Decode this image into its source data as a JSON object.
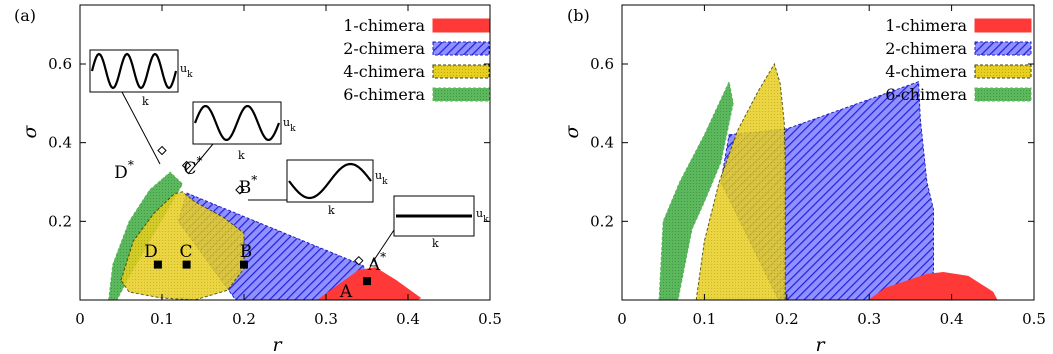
{
  "chart_data": [
    {
      "type": "area",
      "panel_label": "(a)",
      "xlabel": "r",
      "ylabel": "σ",
      "xlim": [
        0,
        0.5
      ],
      "ylim": [
        0,
        0.75
      ],
      "xticks": [
        "0",
        "0.1",
        "0.2",
        "0.3",
        "0.4",
        "0.5"
      ],
      "yticks": [
        "0.2",
        "0.4",
        "0.6"
      ],
      "grid": false,
      "legend_position": "top-right",
      "series": [
        {
          "name": "2-chimera",
          "color": "#4040ff",
          "pattern": "hatch",
          "x": [
            0.13,
            0.345,
            0.35,
            0.32,
            0.19,
            0.12
          ],
          "y": [
            0.272,
            0.088,
            0.07,
            0.0,
            0.0,
            0.2
          ]
        },
        {
          "name": "1-chimera",
          "color": "#ff4040",
          "pattern": "solid",
          "x": [
            0.29,
            0.34,
            0.36,
            0.385,
            0.415,
            0.41
          ],
          "y": [
            0.0,
            0.075,
            0.082,
            0.05,
            0.005,
            0.0
          ]
        },
        {
          "name": "6-chimera",
          "color": "#5cb85c",
          "pattern": "dots",
          "x": [
            0.035,
            0.04,
            0.06,
            0.085,
            0.11,
            0.125,
            0.06,
            0.045
          ],
          "y": [
            0.0,
            0.09,
            0.2,
            0.28,
            0.325,
            0.295,
            0.06,
            0.0
          ]
        },
        {
          "name": "4-chimera",
          "color": "#e8d020",
          "pattern": "dots",
          "x": [
            0.05,
            0.065,
            0.09,
            0.115,
            0.125,
            0.14,
            0.175,
            0.2,
            0.2,
            0.18,
            0.14,
            0.1,
            0.06
          ],
          "y": [
            0.05,
            0.15,
            0.22,
            0.27,
            0.275,
            0.25,
            0.21,
            0.17,
            0.08,
            0.025,
            0.0,
            0.005,
            0.02
          ]
        }
      ],
      "legend": [
        "1-chimera",
        "2-chimera",
        "4-chimera",
        "6-chimera"
      ],
      "points": [
        {
          "label": "D",
          "x": 0.095,
          "y": 0.09,
          "marker": "square"
        },
        {
          "label": "C",
          "x": 0.13,
          "y": 0.09,
          "marker": "square"
        },
        {
          "label": "B",
          "x": 0.2,
          "y": 0.09,
          "marker": "square"
        },
        {
          "label": "A",
          "x": 0.35,
          "y": 0.048,
          "marker": "square"
        },
        {
          "label": "D*",
          "x": 0.1,
          "y": 0.38,
          "marker": "diamond"
        },
        {
          "label": "C*",
          "x": 0.13,
          "y": 0.342,
          "marker": "diamond"
        },
        {
          "label": "B*",
          "x": 0.195,
          "y": 0.28,
          "marker": "diamond"
        },
        {
          "label": "A*",
          "x": 0.34,
          "y": 0.1,
          "marker": "diamond"
        }
      ],
      "insets": [
        {
          "target": "D*",
          "ylabel": "u_k",
          "xlabel": "k",
          "profile": "3 periods"
        },
        {
          "target": "C*",
          "ylabel": "u_k",
          "xlabel": "k",
          "profile": "2 periods"
        },
        {
          "target": "B*",
          "ylabel": "u_k",
          "xlabel": "k",
          "profile": "1 period"
        },
        {
          "target": "A*",
          "ylabel": "u_k",
          "xlabel": "k",
          "profile": "flat"
        }
      ]
    },
    {
      "type": "area",
      "panel_label": "(b)",
      "xlabel": "r",
      "ylabel": "σ",
      "xlim": [
        0,
        0.5
      ],
      "ylim": [
        0,
        0.75
      ],
      "xticks": [
        "0",
        "0.1",
        "0.2",
        "0.3",
        "0.4",
        "0.5"
      ],
      "yticks": [
        "0.2",
        "0.4",
        "0.6"
      ],
      "grid": false,
      "legend_position": "top-right",
      "series": [
        {
          "name": "2-chimera",
          "color": "#4040ff",
          "pattern": "hatch",
          "x": [
            0.13,
            0.2,
            0.36,
            0.362,
            0.37,
            0.378,
            0.378,
            0.3,
            0.19,
            0.12
          ],
          "y": [
            0.42,
            0.435,
            0.555,
            0.46,
            0.3,
            0.23,
            0.0,
            0.0,
            0.0,
            0.3
          ]
        },
        {
          "name": "1-chimera",
          "color": "#ff4040",
          "pattern": "solid",
          "x": [
            0.3,
            0.32,
            0.37,
            0.39,
            0.42,
            0.45,
            0.455
          ],
          "y": [
            0.0,
            0.03,
            0.065,
            0.07,
            0.06,
            0.02,
            0.0
          ]
        },
        {
          "name": "6-chimera",
          "color": "#5cb85c",
          "pattern": "dots",
          "x": [
            0.045,
            0.05,
            0.07,
            0.1,
            0.13,
            0.135,
            0.12,
            0.1,
            0.085,
            0.068
          ],
          "y": [
            0.0,
            0.2,
            0.3,
            0.42,
            0.555,
            0.5,
            0.35,
            0.25,
            0.18,
            0.0
          ]
        },
        {
          "name": "4-chimera",
          "color": "#e8d020",
          "pattern": "dots",
          "x": [
            0.09,
            0.1,
            0.118,
            0.14,
            0.165,
            0.185,
            0.192,
            0.197,
            0.198,
            0.198,
            0.15,
            0.12,
            0.105
          ],
          "y": [
            0.0,
            0.15,
            0.3,
            0.43,
            0.53,
            0.6,
            0.55,
            0.45,
            0.35,
            0.0,
            0.0,
            0.0,
            0.0
          ]
        }
      ],
      "legend": [
        "1-chimera",
        "2-chimera",
        "4-chimera",
        "6-chimera"
      ]
    }
  ]
}
